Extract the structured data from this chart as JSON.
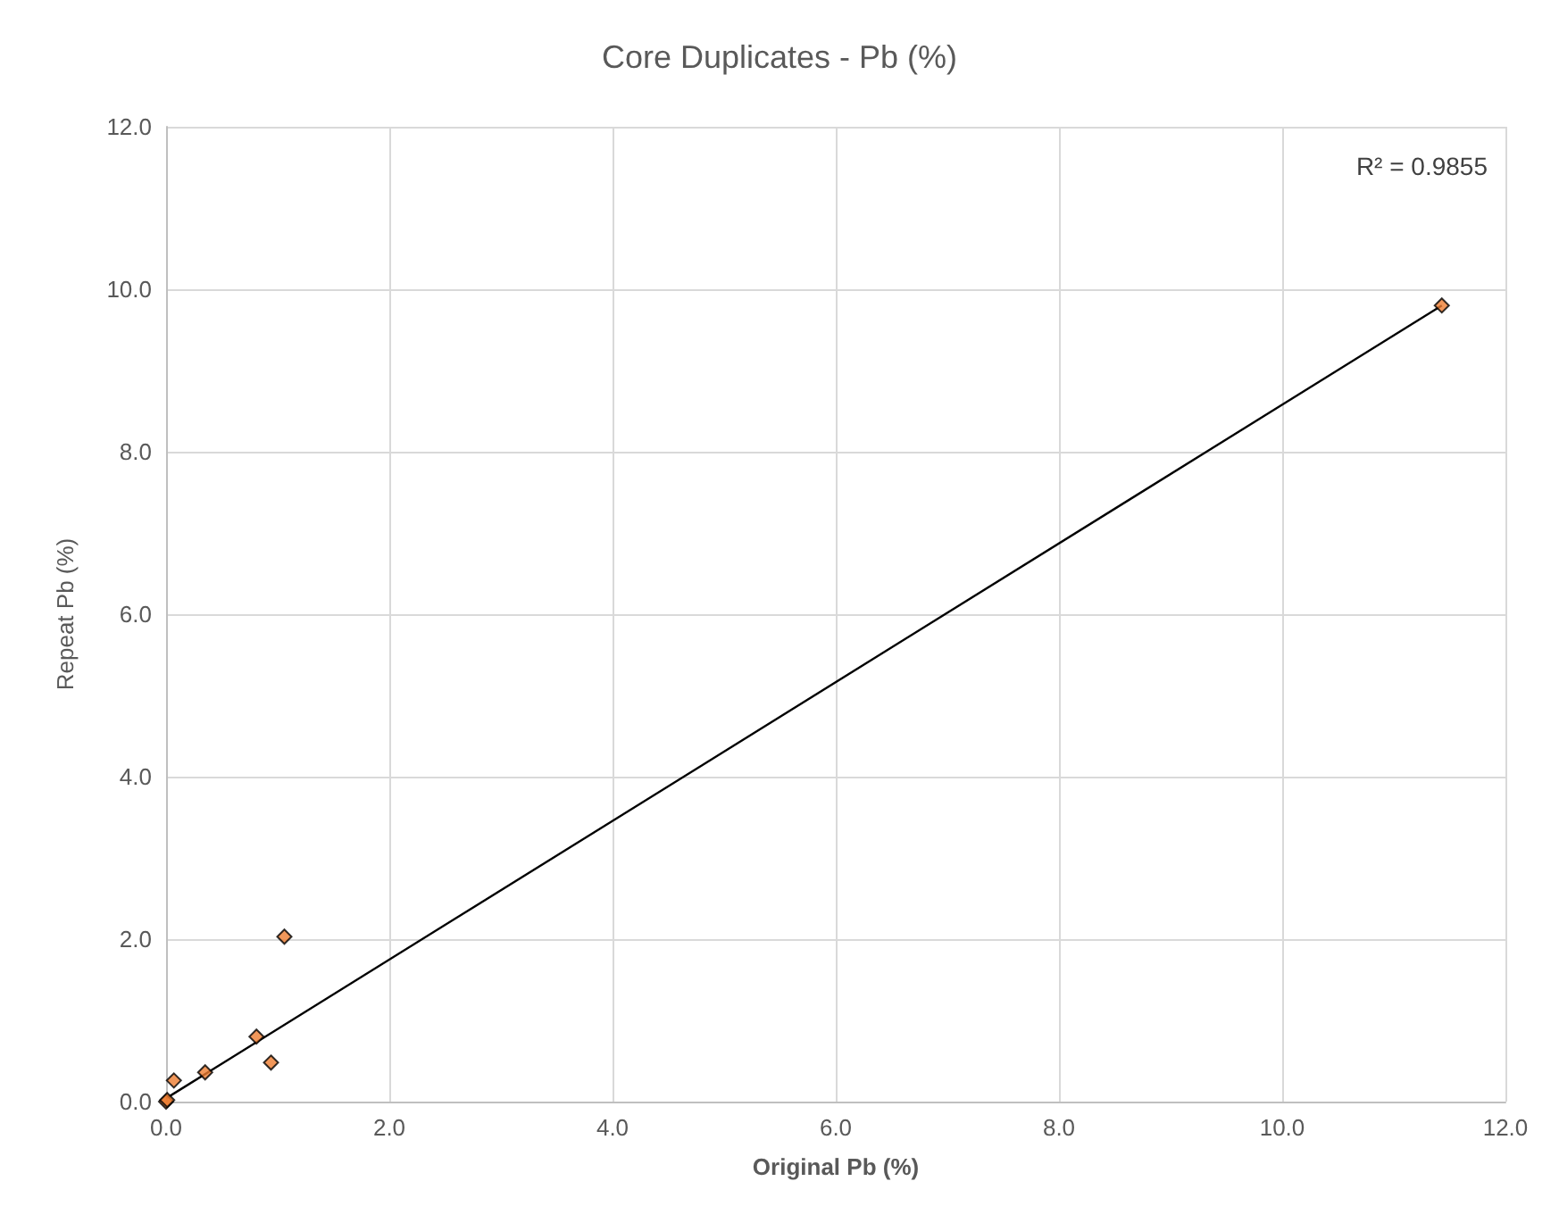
{
  "chart_data": {
    "type": "scatter",
    "title": "Core Duplicates - Pb (%)",
    "xlabel": "Original Pb (%)",
    "ylabel": "Repeat Pb (%)",
    "annotations": [
      "R² = 0.9855"
    ],
    "series": [
      {
        "color": "#ed7d31",
        "x": [
          0,
          0.01,
          0.07,
          0.35,
          0.81,
          0.94,
          1.06,
          11.43
        ],
        "values": [
          0,
          0.02,
          0.26,
          0.36,
          0.8,
          0.48,
          2.03,
          9.8
        ],
        "marker": "diamond"
      },
      {
        "type": "line",
        "color": "#000000",
        "x": [
          0,
          11.43
        ],
        "values": [
          0.04,
          9.8
        ],
        "marker": "none",
        "line_style": "solid"
      }
    ],
    "xlim": [
      0,
      12
    ],
    "xticks": [
      {
        "value": 0,
        "label": "0.0"
      },
      {
        "value": 2,
        "label": "2.0"
      },
      {
        "value": 4,
        "label": "4.0"
      },
      {
        "value": 6,
        "label": "6.0"
      },
      {
        "value": 8,
        "label": "8.0"
      },
      {
        "value": 10,
        "label": "10.0"
      },
      {
        "value": 12,
        "label": "12.0"
      }
    ],
    "ylim": [
      0,
      12
    ],
    "yticks": [
      {
        "value": 0,
        "label": "0.0"
      },
      {
        "value": 2,
        "label": "2.0"
      },
      {
        "value": 4,
        "label": "4.0"
      },
      {
        "value": 6,
        "label": "6.0"
      },
      {
        "value": 8,
        "label": "8.0"
      },
      {
        "value": 10,
        "label": "10.0"
      },
      {
        "value": 12,
        "label": "12.0"
      }
    ],
    "grid": true
  }
}
